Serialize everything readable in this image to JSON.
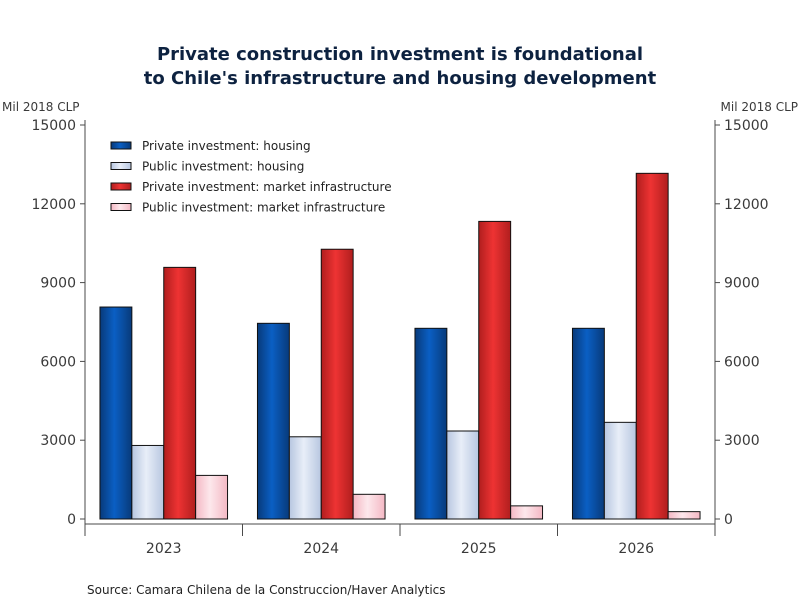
{
  "chart_data": {
    "type": "bar",
    "title": [
      "Private construction investment is foundational",
      "to Chile's infrastructure and housing development"
    ],
    "ylabel_left": "Mil 2018 CLP",
    "ylabel_right": "Mil 2018 CLP",
    "xlabel": "",
    "ylim": [
      0,
      15000
    ],
    "yticks": [
      0,
      3000,
      6000,
      9000,
      12000,
      15000
    ],
    "grid": false,
    "legend_position": "top-left",
    "categories": [
      "2023",
      "2024",
      "2025",
      "2026"
    ],
    "series": [
      {
        "name": "Private investment: housing",
        "color": "#0a5fc4",
        "edge": "#083a7a",
        "values": [
          8070,
          7450,
          7260,
          7260
        ]
      },
      {
        "name": "Public investment: housing",
        "color": "#e8eef8",
        "edge": "#b7c6e0",
        "values": [
          2800,
          3130,
          3350,
          3680
        ]
      },
      {
        "name": "Private investment: market infrastructure",
        "color": "#ee3333",
        "edge": "#b01e1e",
        "values": [
          9580,
          10270,
          11330,
          13160
        ]
      },
      {
        "name": "Public investment: market infrastructure",
        "color": "#fde8ec",
        "edge": "#f4b8c4",
        "values": [
          1660,
          940,
          500,
          280
        ]
      }
    ],
    "source": "Source:  Camara Chilena de la Construccion/Haver Analytics"
  }
}
